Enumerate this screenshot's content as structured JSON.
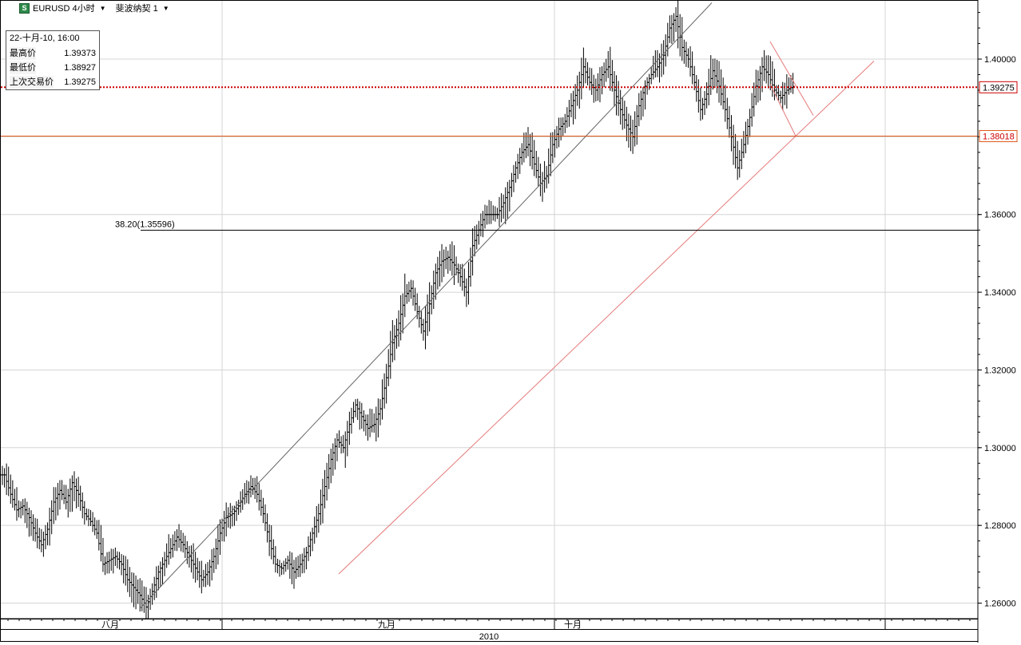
{
  "header": {
    "symbol_label": "EURUSD 4小时",
    "study_label": "斐波纳契 1"
  },
  "info_panel": {
    "date": "22-十月-10, 16:00",
    "rows": [
      {
        "label": "最高价",
        "value": "1.39373"
      },
      {
        "label": "最低价",
        "value": "1.38927"
      },
      {
        "label": "上次交易价",
        "value": "1.39275"
      }
    ]
  },
  "chart_data": {
    "type": "ohlc",
    "title": "EURUSD 4小时",
    "ylim": [
      1.256,
      1.415
    ],
    "y_ticks": [
      "1.26000",
      "1.28000",
      "1.30000",
      "1.32000",
      "1.34000",
      "1.36000",
      "1.38000",
      "1.40000"
    ],
    "x_month_labels": [
      "八月",
      "九月",
      "十月"
    ],
    "x_year_label": "2010",
    "grid": true,
    "price_markers": [
      {
        "label": "1.39275",
        "value": 1.39275,
        "color": "#cc0000",
        "style": "dotted"
      },
      {
        "label": "1.38018",
        "value": 1.38018,
        "color": "#e05a1c",
        "style": "solid"
      }
    ],
    "fib_level": {
      "label": "38.20(1.35596)",
      "value": 1.35596
    },
    "close_path": [
      1.293,
      1.288,
      1.284,
      1.285,
      1.282,
      1.278,
      1.275,
      1.279,
      1.286,
      1.289,
      1.286,
      1.291,
      1.288,
      1.283,
      1.281,
      1.278,
      1.27,
      1.271,
      1.272,
      1.27,
      1.266,
      1.264,
      1.262,
      1.259,
      1.263,
      1.268,
      1.271,
      1.274,
      1.277,
      1.275,
      1.272,
      1.269,
      1.266,
      1.268,
      1.272,
      1.278,
      1.282,
      1.283,
      1.285,
      1.288,
      1.29,
      1.288,
      1.283,
      1.276,
      1.27,
      1.269,
      1.271,
      1.268,
      1.27,
      1.273,
      1.278,
      1.283,
      1.29,
      1.297,
      1.302,
      1.3,
      1.306,
      1.311,
      1.308,
      1.305,
      1.306,
      1.31,
      1.318,
      1.327,
      1.332,
      1.339,
      1.341,
      1.335,
      1.33,
      1.337,
      1.345,
      1.348,
      1.349,
      1.347,
      1.344,
      1.34,
      1.352,
      1.356,
      1.36,
      1.36,
      1.36,
      1.363,
      1.367,
      1.372,
      1.376,
      1.378,
      1.373,
      1.368,
      1.37,
      1.378,
      1.382,
      1.384,
      1.388,
      1.392,
      1.398,
      1.394,
      1.392,
      1.396,
      1.398,
      1.392,
      1.387,
      1.383,
      1.38,
      1.388,
      1.393,
      1.396,
      1.398,
      1.401,
      1.408,
      1.411,
      1.403,
      1.4,
      1.394,
      1.387,
      1.391,
      1.397,
      1.393,
      1.387,
      1.38,
      1.372,
      1.378,
      1.385,
      1.393,
      1.398,
      1.396,
      1.392,
      1.39,
      1.392,
      1.393
    ]
  }
}
